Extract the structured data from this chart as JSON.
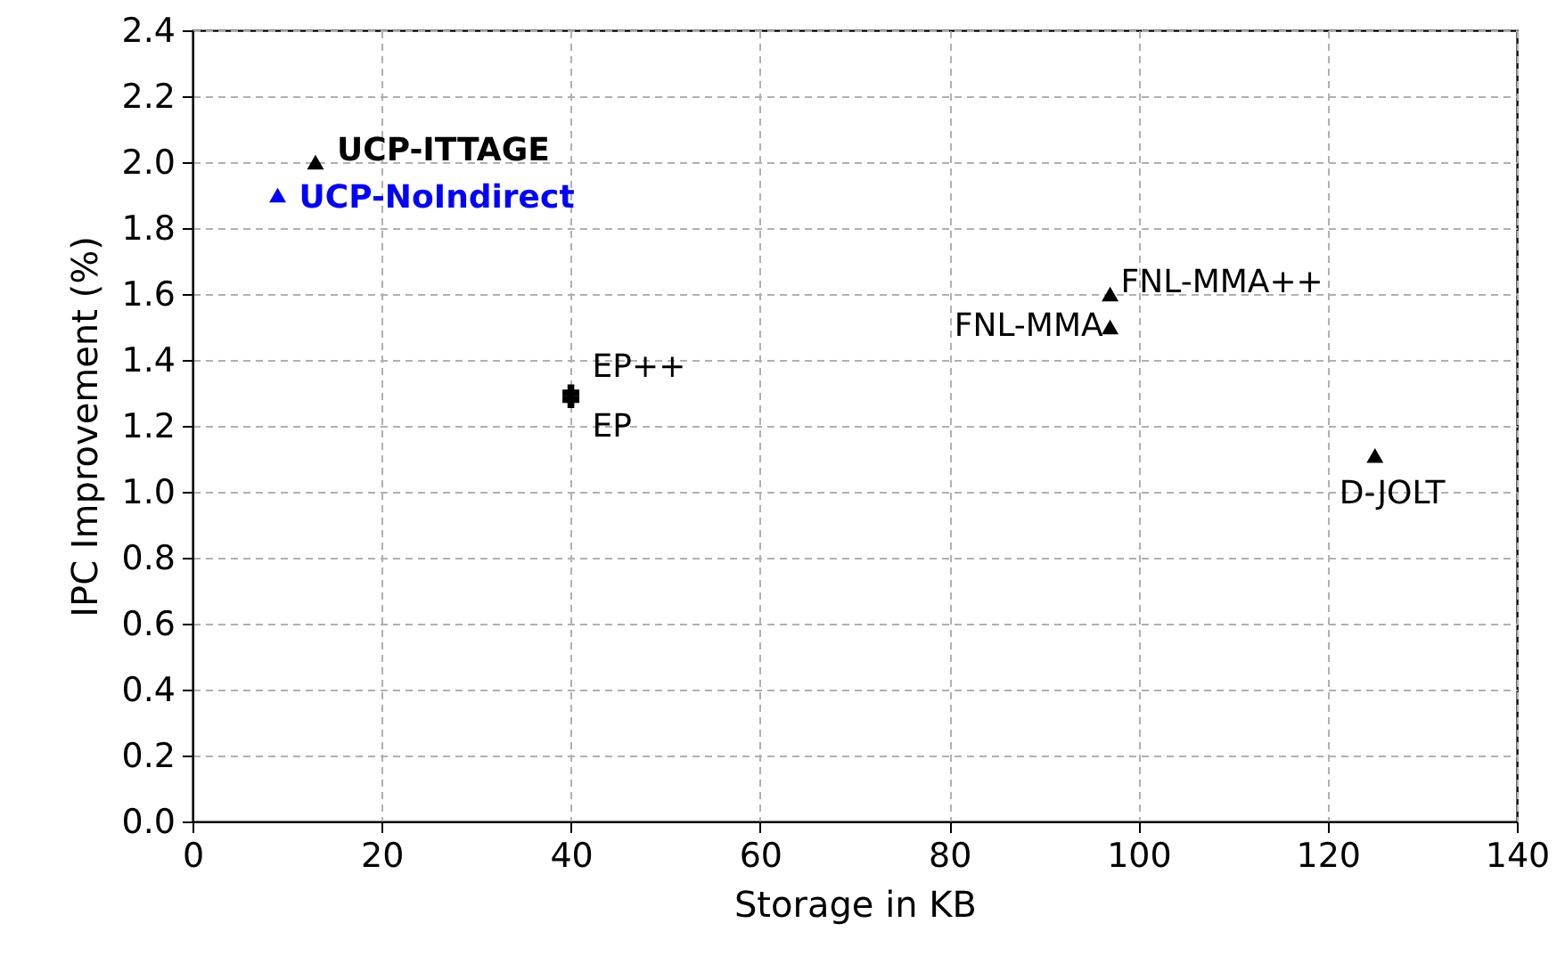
{
  "chart_data": {
    "type": "scatter",
    "xlabel": "Storage in KB",
    "ylabel": "IPC Improvement (%)",
    "xlim": [
      0,
      140
    ],
    "xticks": [
      0,
      20,
      40,
      60,
      80,
      100,
      120,
      140
    ],
    "ylim": [
      0,
      2.4
    ],
    "yticks": [
      {
        "value": 0,
        "label": "0.0"
      },
      {
        "value": 0.2,
        "label": "0.2"
      },
      {
        "value": 0.4,
        "label": "0.4"
      },
      {
        "value": 0.6,
        "label": "0.6"
      },
      {
        "value": 0.8,
        "label": "0.8"
      },
      {
        "value": 1,
        "label": "1.0"
      },
      {
        "value": 1.2,
        "label": "1.2"
      },
      {
        "value": 1.4,
        "label": "1.4"
      },
      {
        "value": 1.6,
        "label": "1.6"
      },
      {
        "value": 1.8,
        "label": "1.8"
      },
      {
        "value": 2,
        "label": "2.0"
      },
      {
        "value": 2.2,
        "label": "2.2"
      },
      {
        "value": 2.4,
        "label": "2.4"
      }
    ],
    "grid": true,
    "legend": false,
    "series": [
      {
        "name": "UCP-ITTAGE",
        "color": "#000000",
        "marker": "triangle",
        "x": [
          13
        ],
        "values": [
          2.0
        ]
      },
      {
        "name": "UCP-NoIndirect",
        "color": "#0000ff",
        "marker": "triangle",
        "x": [
          9
        ],
        "values": [
          1.9
        ]
      },
      {
        "name": "EP++",
        "color": "#000000",
        "marker": "cross",
        "x": [
          40
        ],
        "values": [
          1.3
        ]
      },
      {
        "name": "EP",
        "color": "#000000",
        "marker": "cross",
        "x": [
          40
        ],
        "values": [
          1.28
        ]
      },
      {
        "name": "FNL-MMA++",
        "color": "#000000",
        "marker": "triangle",
        "x": [
          97
        ],
        "values": [
          1.6
        ]
      },
      {
        "name": "FNL-MMA",
        "color": "#000000",
        "marker": "triangle",
        "x": [
          97
        ],
        "values": [
          1.5
        ]
      },
      {
        "name": "D-JOLT",
        "color": "#000000",
        "marker": "triangle",
        "x": [
          125
        ],
        "values": [
          1.11
        ]
      }
    ]
  }
}
